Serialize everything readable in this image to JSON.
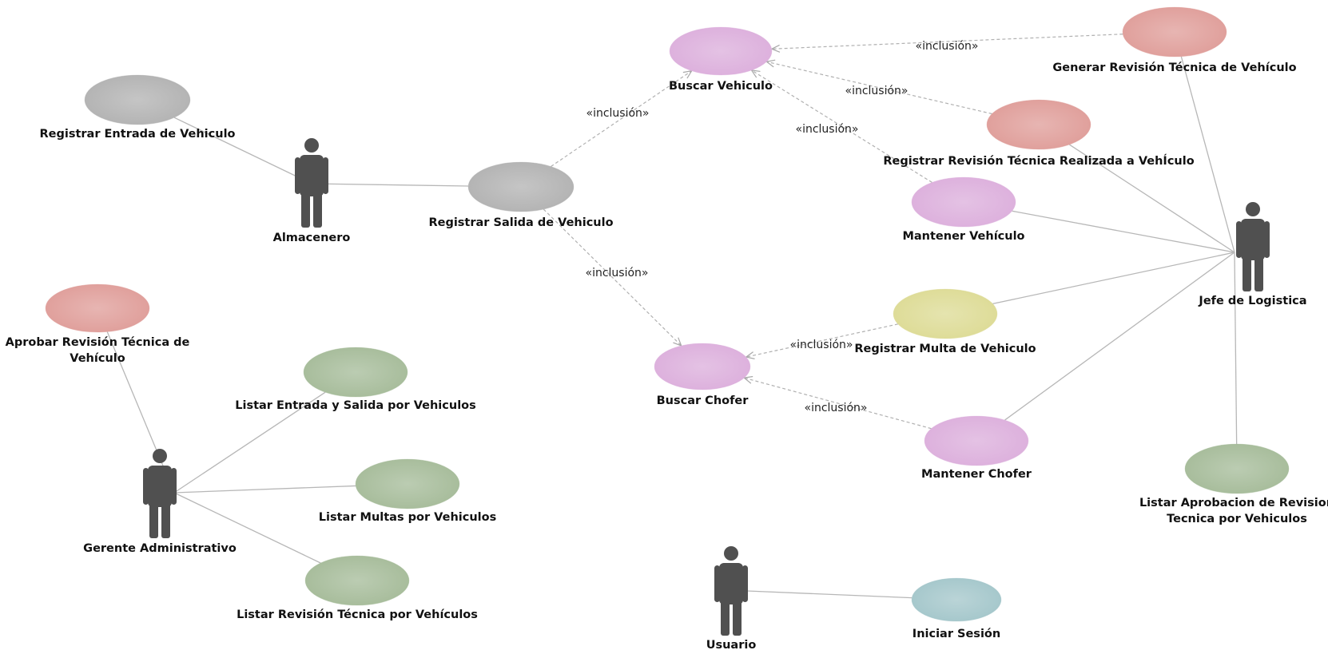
{
  "colors": {
    "gray": "#b4b4b4",
    "pink": "#ddb1dd",
    "salmon": "#e0a09c",
    "green": "#a8bd9c",
    "yellow": "#dedc98",
    "blue": "#a6c8cc",
    "actor": "#505050",
    "line": "#b7b7b7"
  },
  "actors": [
    {
      "id": "almacenero",
      "label": "Almacenero"
    },
    {
      "id": "jefe",
      "label": "Jefe de Logistica"
    },
    {
      "id": "gerente",
      "label": "Gerente Administrativo"
    },
    {
      "id": "usuario",
      "label": "Usuario"
    }
  ],
  "use_cases": [
    {
      "id": "reg_entrada",
      "lines": [
        "Registrar Entrada de Vehiculo"
      ],
      "color": "gray"
    },
    {
      "id": "reg_salida",
      "lines": [
        "Registrar Salida de Vehiculo"
      ],
      "color": "gray"
    },
    {
      "id": "buscar_veh",
      "lines": [
        "Buscar Vehiculo"
      ],
      "color": "pink"
    },
    {
      "id": "buscar_chofer",
      "lines": [
        "Buscar Chofer"
      ],
      "color": "pink"
    },
    {
      "id": "gen_rev",
      "lines": [
        "Generar Revisión Técnica de Vehículo"
      ],
      "color": "salmon"
    },
    {
      "id": "reg_rev",
      "lines": [
        "Registrar Revisión Técnica Realizada a VehÍculo"
      ],
      "color": "salmon"
    },
    {
      "id": "mant_veh",
      "lines": [
        "Mantener Vehículo"
      ],
      "color": "pink"
    },
    {
      "id": "reg_multa",
      "lines": [
        "Registrar Multa de Vehiculo"
      ],
      "color": "yellow"
    },
    {
      "id": "mant_chofer",
      "lines": [
        "Mantener Chofer"
      ],
      "color": "pink"
    },
    {
      "id": "listar_aprob",
      "lines": [
        "Listar Aprobacion de Revision",
        "Tecnica por Vehiculos"
      ],
      "color": "green"
    },
    {
      "id": "aprobar_rev",
      "lines": [
        "Aprobar Revisión Técnica de",
        "Vehículo"
      ],
      "color": "salmon"
    },
    {
      "id": "listar_es",
      "lines": [
        "Listar Entrada y Salida por Vehiculos"
      ],
      "color": "green"
    },
    {
      "id": "listar_multas",
      "lines": [
        "Listar Multas por Vehiculos"
      ],
      "color": "green"
    },
    {
      "id": "listar_rev",
      "lines": [
        "Listar Revisión Técnica por Vehículos"
      ],
      "color": "green"
    },
    {
      "id": "iniciar",
      "lines": [
        "Iniciar Sesión"
      ],
      "color": "blue"
    }
  ],
  "associations": [
    {
      "actor": "almacenero",
      "use_case": "reg_entrada"
    },
    {
      "actor": "almacenero",
      "use_case": "reg_salida"
    },
    {
      "actor": "jefe",
      "use_case": "gen_rev"
    },
    {
      "actor": "jefe",
      "use_case": "reg_rev"
    },
    {
      "actor": "jefe",
      "use_case": "mant_veh"
    },
    {
      "actor": "jefe",
      "use_case": "reg_multa"
    },
    {
      "actor": "jefe",
      "use_case": "mant_chofer"
    },
    {
      "actor": "jefe",
      "use_case": "listar_aprob"
    },
    {
      "actor": "gerente",
      "use_case": "aprobar_rev"
    },
    {
      "actor": "gerente",
      "use_case": "listar_es"
    },
    {
      "actor": "gerente",
      "use_case": "listar_multas"
    },
    {
      "actor": "gerente",
      "use_case": "listar_rev"
    },
    {
      "actor": "usuario",
      "use_case": "iniciar"
    }
  ],
  "inclusions": [
    {
      "from": "reg_salida",
      "to": "buscar_veh",
      "label": "«inclusión»"
    },
    {
      "from": "reg_salida",
      "to": "buscar_chofer",
      "label": "«inclusión»"
    },
    {
      "from": "gen_rev",
      "to": "buscar_veh",
      "label": "«inclusión»"
    },
    {
      "from": "reg_rev",
      "to": "buscar_veh",
      "label": "«inclusión»"
    },
    {
      "from": "mant_veh",
      "to": "buscar_veh",
      "label": "«inclusión»"
    },
    {
      "from": "reg_multa",
      "to": "buscar_chofer",
      "label": "«inclusión»"
    },
    {
      "from": "mant_chofer",
      "to": "buscar_chofer",
      "label": "«inclusión»"
    }
  ]
}
